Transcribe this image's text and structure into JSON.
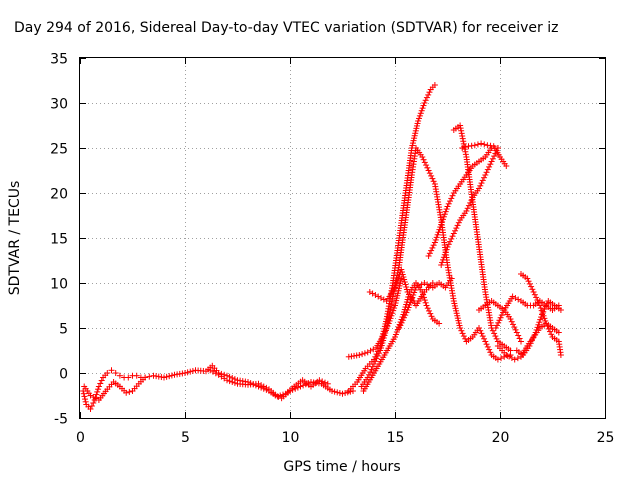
{
  "chart_data": {
    "type": "scatter",
    "title": "Day 294 of 2016, Sidereal Day-to-day VTEC variation (SDTVAR) for receiver iz",
    "xlabel": "GPS time / hours",
    "ylabel": "SDTVAR / TECUs",
    "xlim": [
      0,
      25
    ],
    "ylim": [
      -5,
      35
    ],
    "xticks": [
      0,
      5,
      10,
      15,
      20,
      25
    ],
    "yticks": [
      -5,
      0,
      5,
      10,
      15,
      20,
      25,
      30,
      35
    ],
    "grid": true,
    "legend": "none",
    "marker": "plus",
    "color": "#ff0000",
    "series": [
      {
        "x": [
          0.15,
          0.3,
          0.5,
          0.7,
          0.9,
          1.1,
          1.3,
          1.5,
          1.7,
          1.9,
          2.1,
          2.3,
          2.5,
          2.7,
          2.9,
          3.1,
          3.3
        ],
        "y": [
          -2.0,
          -3.5,
          -4.0,
          -3.0,
          -1.5,
          -0.5,
          0.0,
          0.3,
          0.0,
          -0.3,
          -0.5,
          -0.5,
          -0.3,
          -0.3,
          -0.5,
          -0.5,
          -0.4
        ]
      },
      {
        "x": [
          0.2,
          0.5,
          0.9,
          1.3,
          1.6,
          1.9,
          2.2,
          2.5,
          2.8,
          3.1
        ],
        "y": [
          -1.5,
          -2.5,
          -3.0,
          -1.8,
          -1.0,
          -1.5,
          -2.2,
          -2.0,
          -1.2,
          -0.5
        ]
      },
      {
        "x": [
          3.5,
          4.0,
          4.5,
          5.0,
          5.5,
          6.0,
          6.3,
          6.6,
          7.0,
          7.5,
          8.0,
          8.5,
          9.0,
          9.3,
          9.6,
          10.0,
          10.5,
          11.0,
          11.5,
          12.0,
          12.5,
          13.0
        ],
        "y": [
          -0.3,
          -0.5,
          -0.2,
          0.0,
          0.3,
          0.2,
          0.8,
          0.0,
          -0.3,
          -0.8,
          -1.0,
          -1.5,
          -2.0,
          -2.5,
          -2.8,
          -2.0,
          -1.5,
          -1.0,
          -1.2,
          -2.0,
          -2.3,
          -2.0
        ]
      },
      {
        "x": [
          6.2,
          6.6,
          7.0,
          7.5,
          8.0,
          8.5,
          9.0,
          9.4,
          9.8,
          10.2,
          10.6,
          11.0,
          11.4,
          11.8
        ],
        "y": [
          0.3,
          -0.2,
          -0.8,
          -1.2,
          -1.3,
          -1.2,
          -1.8,
          -2.6,
          -2.3,
          -1.5,
          -0.8,
          -1.5,
          -0.8,
          -1.2
        ]
      },
      {
        "x": [
          12.8,
          13.2,
          13.6,
          14.0,
          14.3,
          14.6,
          14.9,
          15.2,
          15.5,
          15.8,
          16.1,
          16.4,
          16.7,
          16.9
        ],
        "y": [
          -2.0,
          -1.0,
          0.5,
          1.5,
          3.0,
          6.0,
          10.0,
          15.0,
          20.0,
          25.0,
          28.0,
          30.0,
          31.5,
          32.0
        ]
      },
      {
        "x": [
          13.4,
          13.7,
          14.0,
          14.3,
          14.6,
          14.9,
          15.2,
          15.5,
          15.8,
          16.0
        ],
        "y": [
          -1.5,
          -0.5,
          1.0,
          2.5,
          5.0,
          8.5,
          12.0,
          17.0,
          22.0,
          25.0
        ]
      },
      {
        "x": [
          12.8,
          13.3,
          13.7,
          14.1,
          14.4,
          14.7,
          15.0,
          15.3
        ],
        "y": [
          1.8,
          2.0,
          2.3,
          2.8,
          4.0,
          5.5,
          7.5,
          10.5
        ]
      },
      {
        "x": [
          13.5,
          14.0,
          14.5,
          15.0,
          15.4,
          15.7,
          16.0,
          16.3,
          16.5,
          16.8,
          17.1
        ],
        "y": [
          -2.0,
          0.0,
          2.0,
          4.0,
          6.5,
          9.0,
          10.0,
          9.0,
          7.5,
          6.0,
          5.5
        ]
      },
      {
        "x": [
          13.8,
          14.2,
          14.6,
          15.0,
          15.3,
          15.6,
          16.0,
          16.4,
          16.8
        ],
        "y": [
          9.0,
          8.5,
          8.0,
          9.5,
          11.5,
          9.0,
          7.5,
          9.0,
          10.0
        ]
      },
      {
        "x": [
          15.2,
          15.6,
          16.0,
          16.4,
          16.8,
          17.1,
          17.4,
          17.7
        ],
        "y": [
          5.0,
          7.0,
          9.5,
          10.0,
          9.5,
          10.0,
          9.5,
          10.5
        ]
      },
      {
        "x": [
          16.0,
          16.3,
          16.6,
          16.9,
          17.2,
          17.5,
          17.8,
          18.1,
          18.4,
          18.7,
          19.0,
          19.3,
          19.6,
          19.9,
          20.2,
          20.5
        ],
        "y": [
          25.0,
          24.0,
          22.5,
          21.0,
          17.0,
          12.0,
          8.0,
          5.0,
          3.5,
          4.0,
          5.0,
          3.5,
          2.0,
          1.5,
          1.8,
          2.0
        ]
      },
      {
        "x": [
          16.6,
          16.9,
          17.2,
          17.5,
          17.8,
          18.1,
          18.4,
          18.7,
          19.0,
          19.3,
          19.6,
          19.9
        ],
        "y": [
          13.0,
          14.5,
          16.5,
          18.5,
          20.0,
          21.0,
          22.0,
          23.0,
          23.5,
          24.0,
          25.0,
          25.0
        ]
      },
      {
        "x": [
          17.2,
          17.5,
          17.8,
          18.1,
          18.4,
          18.7,
          19.0,
          19.3,
          19.6,
          19.9
        ],
        "y": [
          12.0,
          14.0,
          15.5,
          17.0,
          18.0,
          19.5,
          20.5,
          22.0,
          23.5,
          25.0
        ]
      },
      {
        "x": [
          17.8,
          18.1,
          18.4,
          18.7,
          19.0,
          19.3,
          19.6,
          19.9,
          20.2,
          20.5
        ],
        "y": [
          27.0,
          27.5,
          24.0,
          19.0,
          14.0,
          9.0,
          5.0,
          3.5,
          3.0,
          2.5
        ]
      },
      {
        "x": [
          18.2,
          18.5,
          18.8,
          19.1,
          19.4,
          19.7,
          20.0,
          20.3
        ],
        "y": [
          25.0,
          25.2,
          25.3,
          25.5,
          25.3,
          25.2,
          24.0,
          23.0
        ]
      },
      {
        "x": [
          19.0,
          19.3,
          19.6,
          19.9,
          20.2,
          20.5,
          20.8,
          21.0
        ],
        "y": [
          7.0,
          7.5,
          8.0,
          7.5,
          7.0,
          6.0,
          4.5,
          3.5
        ]
      },
      {
        "x": [
          19.8,
          20.2,
          20.6,
          21.0,
          21.3,
          21.6,
          21.9,
          22.2,
          22.5,
          22.8
        ],
        "y": [
          5.0,
          7.0,
          8.5,
          8.0,
          7.5,
          7.5,
          8.0,
          7.5,
          7.0,
          7.5
        ]
      },
      {
        "x": [
          19.9,
          20.3,
          20.7,
          21.0,
          21.3,
          21.6,
          21.9,
          22.2,
          22.5,
          22.8
        ],
        "y": [
          3.0,
          2.0,
          1.5,
          1.8,
          3.0,
          4.0,
          5.0,
          5.5,
          5.0,
          4.5
        ]
      },
      {
        "x": [
          21.0,
          21.3,
          21.6,
          21.9,
          22.2,
          22.5,
          22.8,
          22.9
        ],
        "y": [
          11.0,
          10.5,
          9.0,
          7.5,
          5.5,
          4.0,
          3.5,
          2.0
        ]
      },
      {
        "x": [
          20.8,
          21.1,
          21.4,
          21.7,
          22.0,
          22.3,
          22.6,
          22.9
        ],
        "y": [
          2.5,
          2.0,
          3.0,
          4.5,
          6.5,
          8.0,
          7.5,
          7.0
        ]
      }
    ]
  }
}
